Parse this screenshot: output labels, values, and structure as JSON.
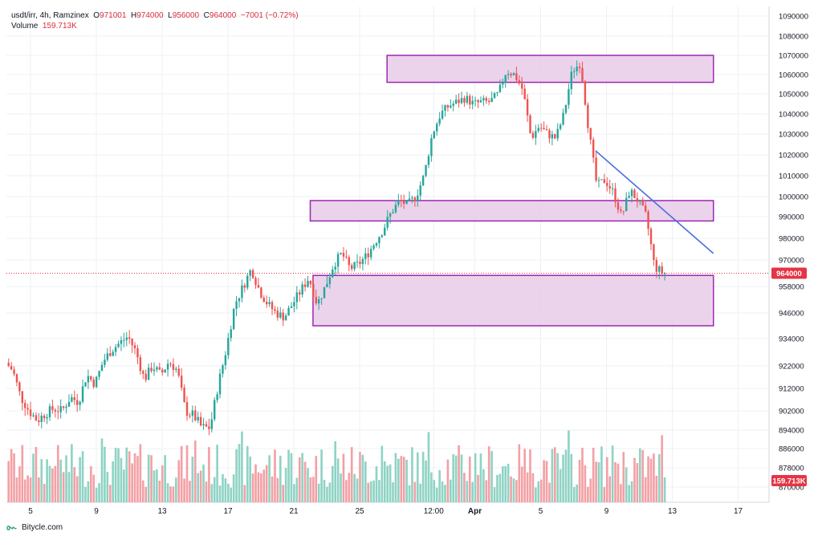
{
  "header": {
    "symbol": "usdt/irr, 4h, Ramzinex",
    "o_label": "O",
    "o_value": "971001",
    "h_label": "H",
    "h_value": "974000",
    "l_label": "L",
    "l_value": "956000",
    "c_label": "C",
    "c_value": "964000",
    "change": "−7001 (−0.72%)",
    "volume_label": "Volume",
    "volume_value": "159.713K"
  },
  "brand": {
    "name": "Bitycle.com"
  },
  "colors": {
    "up": "#26a69a",
    "down": "#ef5350",
    "up_vol": "#8fd3c4",
    "down_vol": "#f3a0a5",
    "zone_fill": "#e7cbe9",
    "zone_stroke": "#9c27b0",
    "trendline": "#4a6ee0",
    "price_tag": "#e53544",
    "grid": "#eef0f3"
  },
  "chart_data": {
    "type": "candlestick",
    "y_axis": {
      "ticks": [
        "1090000",
        "1080000",
        "1070000",
        "1060000",
        "1050000",
        "1040000",
        "1030000",
        "1020000",
        "1010000",
        "1000000",
        "990000",
        "980000",
        "970000",
        "958000",
        "946000",
        "934000",
        "922000",
        "912000",
        "902000",
        "894000",
        "886000",
        "878000",
        "870000"
      ]
    },
    "x_axis": {
      "ticks": [
        {
          "label": "5",
          "date": "Mar 5"
        },
        {
          "label": "9",
          "date": "Mar 9"
        },
        {
          "label": "13",
          "date": "Mar 13"
        },
        {
          "label": "17",
          "date": "Mar 17"
        },
        {
          "label": "21",
          "date": "Mar 21"
        },
        {
          "label": "25",
          "date": "Mar 25"
        },
        {
          "label": "12:00",
          "date": "Mar 29 12:00"
        },
        {
          "label": "Apr",
          "date": "Apr 1"
        },
        {
          "label": "5",
          "date": "Apr 5"
        },
        {
          "label": "9",
          "date": "Apr 9"
        },
        {
          "label": "13",
          "date": "Apr 13"
        },
        {
          "label": "17",
          "date": "Apr 17"
        }
      ]
    },
    "price_path": [
      [
        "Mar 3",
        912000
      ],
      [
        "Mar 3 12:00",
        924000
      ],
      [
        "Mar 4",
        920000
      ],
      [
        "Mar 4 12:00",
        908000
      ],
      [
        "Mar 5",
        902000
      ],
      [
        "Mar 5 12:00",
        898000
      ],
      [
        "Mar 6",
        901000
      ],
      [
        "Mar 6 12:00",
        903000
      ],
      [
        "Mar 7",
        902000
      ],
      [
        "Mar 7 12:00",
        908000
      ],
      [
        "Mar 8",
        906000
      ],
      [
        "Mar 8 12:00",
        918000
      ],
      [
        "Mar 9",
        914000
      ],
      [
        "Mar 9 12:00",
        924000
      ],
      [
        "Mar 10",
        929000
      ],
      [
        "Mar 10 12:00",
        932000
      ],
      [
        "Mar 11",
        935000
      ],
      [
        "Mar 11 12:00",
        928000
      ],
      [
        "Mar 12",
        916000
      ],
      [
        "Mar 12 12:00",
        922000
      ],
      [
        "Mar 13",
        918000
      ],
      [
        "Mar 13 12:00",
        924000
      ],
      [
        "Mar 14",
        920000
      ],
      [
        "Mar 14 12:00",
        902000
      ],
      [
        "Mar 15",
        900000
      ],
      [
        "Mar 15 12:00",
        895000
      ],
      [
        "Mar 16",
        895000
      ],
      [
        "Mar 16 12:00",
        914000
      ],
      [
        "Mar 17",
        930000
      ],
      [
        "Mar 17 12:00",
        950000
      ],
      [
        "Mar 18",
        958000
      ],
      [
        "Mar 18 12:00",
        966000
      ],
      [
        "Mar 19",
        956000
      ],
      [
        "Mar 19 12:00",
        950000
      ],
      [
        "Mar 20",
        946000
      ],
      [
        "Mar 20 12:00",
        944000
      ],
      [
        "Mar 21",
        950000
      ],
      [
        "Mar 21 12:00",
        956000
      ],
      [
        "Mar 22",
        962000
      ],
      [
        "Mar 22 12:00",
        950000
      ],
      [
        "Mar 23",
        958000
      ],
      [
        "Mar 23 12:00",
        968000
      ],
      [
        "Mar 24",
        973000
      ],
      [
        "Mar 24 12:00",
        966000
      ],
      [
        "Mar 25",
        968000
      ],
      [
        "Mar 25 12:00",
        972000
      ],
      [
        "Mar 26",
        978000
      ],
      [
        "Mar 26 12:00",
        984000
      ],
      [
        "Mar 27",
        992000
      ],
      [
        "Mar 27 12:00",
        998000
      ],
      [
        "Mar 28",
        996000
      ],
      [
        "Mar 28 12:00",
        1000000
      ],
      [
        "Mar 29",
        1010000
      ],
      [
        "Mar 29 12:00",
        1030000
      ],
      [
        "Mar 30",
        1040000
      ],
      [
        "Mar 30 12:00",
        1044000
      ],
      [
        "Mar 31",
        1046000
      ],
      [
        "Mar 31 12:00",
        1048000
      ],
      [
        "Apr 1",
        1045000
      ],
      [
        "Apr 1 12:00",
        1046000
      ],
      [
        "Apr 2",
        1046000
      ],
      [
        "Apr 2 12:00",
        1050000
      ],
      [
        "Apr 3",
        1062000
      ],
      [
        "Apr 3 12:00",
        1060000
      ],
      [
        "Apr 4",
        1052000
      ],
      [
        "Apr 4 12:00",
        1028000
      ],
      [
        "Apr 5",
        1034000
      ],
      [
        "Apr 5 12:00",
        1030000
      ],
      [
        "Apr 6",
        1028000
      ],
      [
        "Apr 6 12:00",
        1040000
      ],
      [
        "Apr 7",
        1062000
      ],
      [
        "Apr 7 12:00",
        1066000
      ],
      [
        "Apr 8",
        1032000
      ],
      [
        "Apr 8 12:00",
        1005000
      ],
      [
        "Apr 9",
        1008000
      ],
      [
        "Apr 9 12:00",
        1002000
      ],
      [
        "Apr 10",
        990000
      ],
      [
        "Apr 10 12:00",
        1003000
      ],
      [
        "Apr 11",
        998000
      ],
      [
        "Apr 11 12:00",
        990000
      ],
      [
        "Apr 12",
        967000
      ],
      [
        "Apr 12 12:00",
        964000
      ]
    ],
    "last_price": "964000",
    "last_volume": "159.713K",
    "annotations": {
      "zones": [
        {
          "from": "Mar 26 16:00",
          "to": "Apr 15 12:00",
          "top": 1070000,
          "bottom": 1056000
        },
        {
          "from": "Mar 22",
          "to": "Apr 15 12:00",
          "top": 998000,
          "bottom": 988000
        },
        {
          "from": "Mar 22 04:00",
          "to": "Apr 15 12:00",
          "top": 963000,
          "bottom": 940000
        }
      ],
      "trendline": {
        "from": [
          "Apr 8 08:00",
          1022000
        ],
        "to": [
          "Apr 15 12:00",
          973000
        ]
      },
      "current_price_line": 964000
    }
  }
}
